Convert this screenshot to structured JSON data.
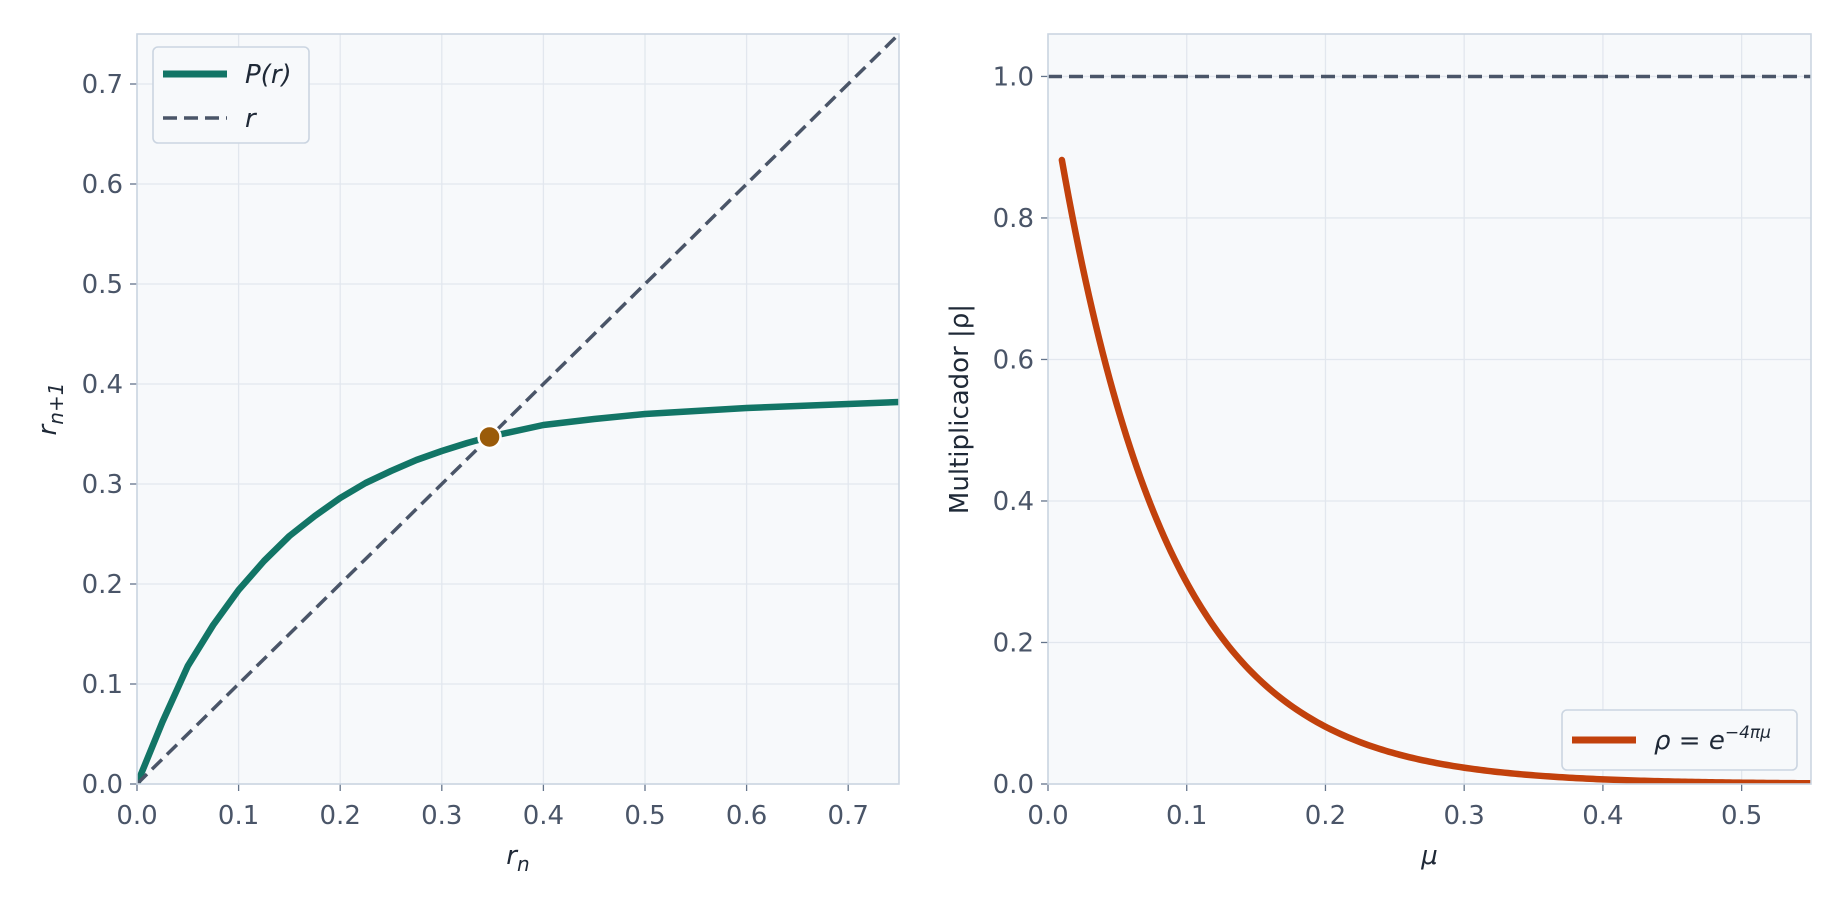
{
  "chart_data": [
    {
      "type": "line",
      "xlabel_base": "r",
      "xlabel_sub": "n",
      "ylabel_base": "r",
      "ylabel_sub": "n+1",
      "xlim": [
        0,
        0.75
      ],
      "ylim": [
        0,
        0.75
      ],
      "xticks": [
        "0.0",
        "0.1",
        "0.2",
        "0.3",
        "0.4",
        "0.5",
        "0.6",
        "0.7"
      ],
      "yticks": [
        "0.0",
        "0.1",
        "0.2",
        "0.3",
        "0.4",
        "0.5",
        "0.6",
        "0.7"
      ],
      "grid": true,
      "legend": {
        "position": "upper-left",
        "entries": [
          {
            "label": "P(r)",
            "style": "solid"
          },
          {
            "label": "r",
            "style": "dashed"
          }
        ]
      },
      "series": [
        {
          "name": "P(r)",
          "color": "#127566",
          "style": "solid",
          "x": [
            0.0,
            0.025,
            0.05,
            0.075,
            0.1,
            0.125,
            0.15,
            0.175,
            0.2,
            0.225,
            0.25,
            0.275,
            0.3,
            0.325,
            0.35,
            0.4,
            0.45,
            0.5,
            0.55,
            0.6,
            0.65,
            0.7,
            0.75
          ],
          "y": [
            0.0,
            0.062,
            0.118,
            0.159,
            0.194,
            0.223,
            0.248,
            0.268,
            0.286,
            0.301,
            0.313,
            0.324,
            0.333,
            0.341,
            0.348,
            0.359,
            0.365,
            0.37,
            0.373,
            0.376,
            0.378,
            0.38,
            0.382
          ]
        },
        {
          "name": "r",
          "color": "#4a5568",
          "style": "dashed",
          "x": [
            0,
            0.75
          ],
          "y": [
            0,
            0.75
          ]
        }
      ],
      "points": [
        {
          "x": 0.347,
          "y": 0.347,
          "color": "#9a5b0a"
        }
      ]
    },
    {
      "type": "line",
      "xlabel": "μ",
      "ylabel": "Multiplicador |ρ|",
      "xlim": [
        0,
        0.55
      ],
      "ylim": [
        0,
        1.06
      ],
      "xticks": [
        "0.0",
        "0.1",
        "0.2",
        "0.3",
        "0.4",
        "0.5"
      ],
      "yticks": [
        "0.0",
        "0.2",
        "0.4",
        "0.6",
        "0.8",
        "1.0"
      ],
      "grid": true,
      "legend": {
        "position": "lower-right",
        "entries": [
          {
            "label": "ρ = e",
            "sup": "−4πμ",
            "style": "solid"
          }
        ]
      },
      "series": [
        {
          "name": "ρ = e^{−4πμ}",
          "color": "#c2410c",
          "style": "solid",
          "formula": "exp(-4*pi*mu)",
          "x_range": [
            0.01,
            0.55
          ]
        },
        {
          "name": "1",
          "color": "#4a5568",
          "style": "dashed",
          "x": [
            0,
            0.55
          ],
          "y": [
            1.0,
            1.0
          ]
        }
      ]
    }
  ]
}
